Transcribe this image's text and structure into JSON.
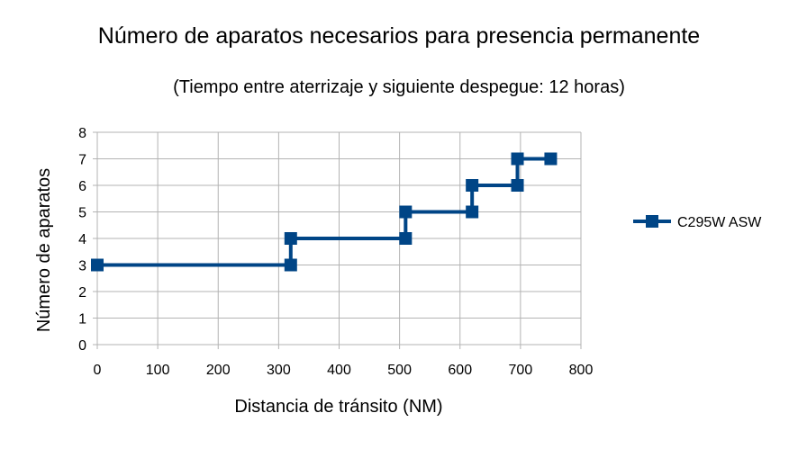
{
  "chart_data": {
    "type": "line",
    "title": "Número de aparatos necesarios para presencia permanente",
    "subtitle": "(Tiempo entre aterrizaje y siguiente despegue: 12 horas)",
    "xlabel": "Distancia de tránsito (NM)",
    "ylabel": "Número de aparatos",
    "xlim": [
      0,
      800
    ],
    "ylim": [
      0,
      8
    ],
    "xticks": [
      "0",
      "100",
      "200",
      "300",
      "400",
      "500",
      "600",
      "700",
      "800"
    ],
    "yticks": [
      "0",
      "1",
      "2",
      "3",
      "4",
      "5",
      "6",
      "7",
      "8"
    ],
    "grid": true,
    "legend_position": "right",
    "series": [
      {
        "name": "C295W ASW",
        "color": "#004586",
        "marker": "square",
        "x": [
          0,
          320,
          320,
          510,
          510,
          620,
          620,
          695,
          695,
          750
        ],
        "y": [
          3,
          3,
          4,
          4,
          5,
          5,
          6,
          6,
          7,
          7
        ]
      }
    ]
  }
}
